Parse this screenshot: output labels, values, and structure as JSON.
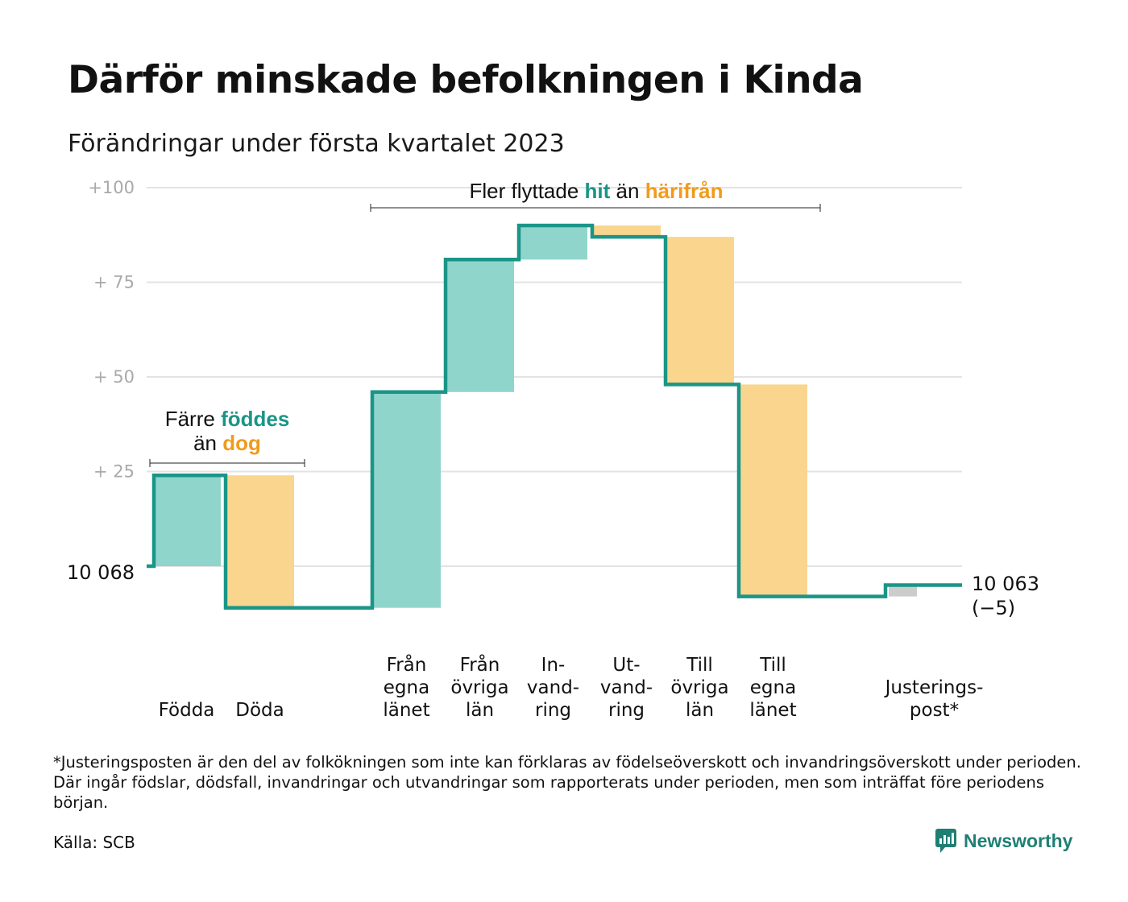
{
  "title": "Därför minskade befolkningen i Kinda",
  "subtitle": "Förändringar under första kvartalet 2023",
  "colors": {
    "increase": "#8fd5cc",
    "decrease": "#f9d58e",
    "adjustment": "#cccccc",
    "line": "#1a9587",
    "teal_text": "#1a9587",
    "orange_text": "#f19b1c",
    "grid": "#e3e3e3",
    "brand": "#1f7f73"
  },
  "annotations": {
    "births": {
      "line1": "Färre",
      "line1_hi": "föddes",
      "line2": "än",
      "line2_hi": "dog"
    },
    "migration": {
      "pre": "Fler flyttade",
      "hi1": "hit",
      "mid": "än",
      "hi2": "härifrån"
    }
  },
  "start_label": "10 068",
  "end_label": "10 063",
  "end_change": "(−5)",
  "chart_data": {
    "type": "waterfall",
    "title": "Därför minskade befolkningen i Kinda",
    "subtitle": "Förändringar under första kvartalet 2023",
    "start_value": 10068,
    "end_value": 10063,
    "net_change": -5,
    "y_ticks": [
      "+100",
      "+ 75",
      "+ 50",
      "+ 25"
    ],
    "y_tick_values": [
      100,
      75,
      50,
      25
    ],
    "ylim": [
      -11,
      100
    ],
    "grid": true,
    "steps": [
      {
        "label": [
          "Födda"
        ],
        "delta": 24,
        "kind": "increase"
      },
      {
        "label": [
          "Döda"
        ],
        "delta": -35,
        "kind": "decrease"
      },
      {
        "label": [],
        "delta": 0,
        "kind": "gap"
      },
      {
        "label": [
          "Från",
          "egna",
          "länet"
        ],
        "delta": 57,
        "kind": "increase"
      },
      {
        "label": [
          "Från",
          "övriga",
          "län"
        ],
        "delta": 35,
        "kind": "increase"
      },
      {
        "label": [
          "In-",
          "vand-",
          "ring"
        ],
        "delta": 9,
        "kind": "increase"
      },
      {
        "label": [
          "Ut-",
          "vand-",
          "ring"
        ],
        "delta": -3,
        "kind": "decrease"
      },
      {
        "label": [
          "Till",
          "övriga",
          "län"
        ],
        "delta": -39,
        "kind": "decrease"
      },
      {
        "label": [
          "Till",
          "egna",
          "länet"
        ],
        "delta": -56,
        "kind": "decrease"
      },
      {
        "label": [],
        "delta": 0,
        "kind": "gap"
      },
      {
        "label": [
          "Justerings-",
          "post*"
        ],
        "delta": 3,
        "kind": "adjustment"
      }
    ]
  },
  "footnote": "*Justeringsposten är den del av folkökningen som inte kan förklaras av födelseöverskott och invandringsöverskott under perioden. Där ingår födslar, dödsfall, invandringar och utvandringar som rapporterats under perioden, men som inträffat före periodens början.",
  "source": "Källa: SCB",
  "brand": "Newsworthy"
}
